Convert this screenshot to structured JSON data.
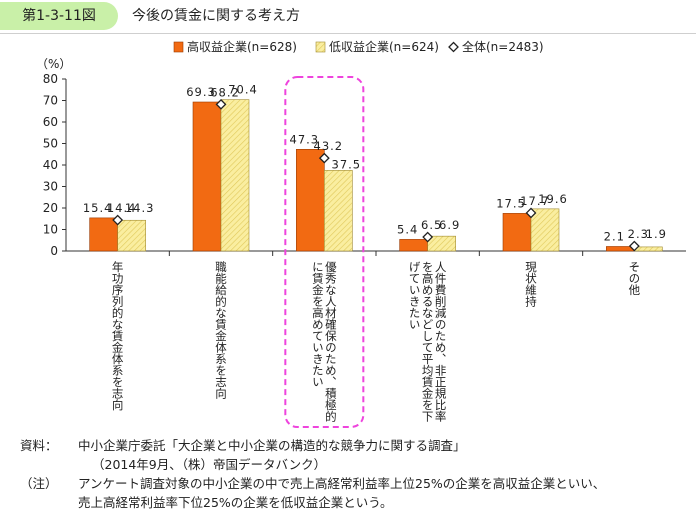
{
  "header": {
    "figure_number": "第1-3-11図",
    "title": "今後の賃金に関する考え方"
  },
  "colors": {
    "high_income": "#f26a12",
    "low_income": "#faeea0",
    "low_income_stripe": "#e0c85a",
    "highlight_box": "#ee44dd",
    "header_tag": "#c9f0a8"
  },
  "chart_data": {
    "type": "bar",
    "yunit": "（%）",
    "ylim": [
      0,
      80
    ],
    "yticks": [
      0,
      10,
      20,
      30,
      40,
      50,
      60,
      70,
      80
    ],
    "legend": [
      {
        "key": "high",
        "label": "高収益企業(n=628)"
      },
      {
        "key": "low",
        "label": "低収益企業(n=624)"
      },
      {
        "key": "all",
        "label": "全体(n=2483)"
      }
    ],
    "categories": [
      "年功序列的な賃金体系を志向",
      "職能給的な賃金体系を志向",
      "優秀な人材確保のため、積極的に賃金を高めていきたい",
      "人件費削減のため、非正規比率を高めるなどして平均賃金を下げていきたい",
      "現状維持",
      "その他"
    ],
    "category_lines": [
      [
        "年功序列的な賃金体系を志向"
      ],
      [
        "職能給的な賃金体系を志向"
      ],
      [
        "優秀な人材確保のため、積極的",
        "に賃金を高めていきたい"
      ],
      [
        "人件費削減のため、非正規比率",
        "を高めるなどして平均賃金を下",
        "げていきたい"
      ],
      [
        "現状維持"
      ],
      [
        "その他"
      ]
    ],
    "series": [
      {
        "name": "高収益企業(n=628)",
        "values": [
          15.4,
          69.3,
          47.3,
          5.4,
          17.5,
          2.1
        ]
      },
      {
        "name": "低収益企業(n=624)",
        "values": [
          14.3,
          70.4,
          37.5,
          6.9,
          19.6,
          1.9
        ]
      },
      {
        "name": "全体(n=2483)",
        "values": [
          14.4,
          68.2,
          43.2,
          6.5,
          17.7,
          2.3
        ]
      }
    ],
    "value_labels": {
      "high": [
        "15.4",
        "69.3",
        "47.3",
        "5.4",
        "17.5",
        "2.1"
      ],
      "low": [
        "14.3",
        "70.4",
        "37.5",
        "6.9",
        "19.6",
        "1.9"
      ],
      "all": [
        "14.4",
        "68.2",
        "43.2",
        "6.5",
        "17.7",
        "2.3"
      ]
    },
    "highlight_category_index": 2,
    "grid": false,
    "legend_position": "top"
  },
  "notes": {
    "source_label": "資料：",
    "source_text": "中小企業庁委託「大企業と中小企業の構造的な競争力に関する調査」",
    "source_sub": "（2014年9月、（株）帝国データバンク）",
    "note_label": "（注）",
    "note_line1": "アンケート調査対象の中小企業の中で売上高経常利益率上位25%の企業を高収益企業といい、",
    "note_line2": "売上高経常利益率下位25%の企業を低収益企業という。"
  }
}
